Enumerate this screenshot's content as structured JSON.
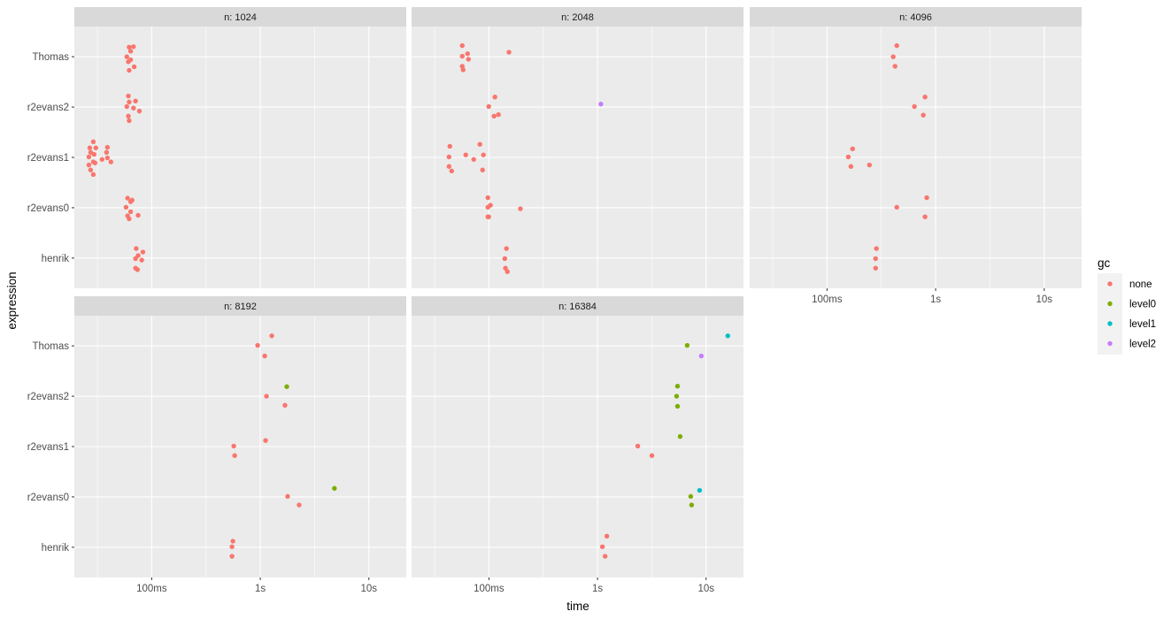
{
  "chart_data": {
    "type": "scatter",
    "subtype": "faceted jitter plot",
    "xlabel": "time",
    "ylabel": "expression",
    "x_scale": "log10",
    "x_unit": "ms",
    "xlim_ms": [
      19.4,
      22100
    ],
    "x_ticks": [
      {
        "value_ms": 100,
        "label": "100ms"
      },
      {
        "value_ms": 1000,
        "label": "1s"
      },
      {
        "value_ms": 10000,
        "label": "10s"
      }
    ],
    "categories": [
      "henrik",
      "r2evans0",
      "r2evans1",
      "r2evans2",
      "Thomas"
    ],
    "grid": true,
    "legend": {
      "title": "gc",
      "placement": "right",
      "items": [
        {
          "key": "none",
          "label": "none",
          "color": "#F8766D"
        },
        {
          "key": "level0",
          "label": "level0",
          "color": "#7CAE00"
        },
        {
          "key": "level1",
          "label": "level1",
          "color": "#00BFC4"
        },
        {
          "key": "level2",
          "label": "level2",
          "color": "#C77CFF"
        }
      ]
    },
    "point_fields": [
      "time_ms",
      "jitter",
      "gc"
    ],
    "facets": [
      {
        "label": "n: 1024",
        "points": {
          "Thomas": [
            [
              62,
              0.19,
              "none"
            ],
            [
              68,
              0.2,
              "none"
            ],
            [
              64,
              0.11,
              "none"
            ],
            [
              59,
              0.0,
              "none"
            ],
            [
              64,
              -0.06,
              "none"
            ],
            [
              61,
              -0.1,
              "none"
            ],
            [
              69,
              -0.2,
              "none"
            ],
            [
              62,
              -0.27,
              "none"
            ]
          ],
          "r2evans2": [
            [
              61,
              0.22,
              "none"
            ],
            [
              62,
              0.1,
              "none"
            ],
            [
              71,
              0.12,
              "none"
            ],
            [
              59,
              0.01,
              "none"
            ],
            [
              68,
              -0.02,
              "none"
            ],
            [
              77,
              -0.08,
              "none"
            ],
            [
              61,
              -0.18,
              "none"
            ],
            [
              62,
              -0.27,
              "none"
            ]
          ],
          "r2evans1": [
            [
              29,
              0.31,
              "none"
            ],
            [
              26.9,
              0.19,
              "none"
            ],
            [
              30.6,
              0.19,
              "none"
            ],
            [
              39.1,
              0.2,
              "none"
            ],
            [
              27.4,
              0.1,
              "none"
            ],
            [
              29.5,
              0.06,
              "none"
            ],
            [
              38.4,
              0.1,
              "none"
            ],
            [
              26.4,
              0.01,
              "none"
            ],
            [
              39.1,
              -0.01,
              "none"
            ],
            [
              34.9,
              -0.04,
              "none"
            ],
            [
              29,
              -0.09,
              "none"
            ],
            [
              30.1,
              -0.11,
              "none"
            ],
            [
              42.1,
              -0.09,
              "none"
            ],
            [
              26.4,
              -0.15,
              "none"
            ],
            [
              27.4,
              -0.25,
              "none"
            ],
            [
              29,
              -0.34,
              "none"
            ]
          ],
          "r2evans0": [
            [
              60,
              0.19,
              "none"
            ],
            [
              66,
              0.15,
              "none"
            ],
            [
              64,
              0.12,
              "none"
            ],
            [
              58,
              0.01,
              "none"
            ],
            [
              64,
              -0.08,
              "none"
            ],
            [
              75,
              -0.15,
              "none"
            ],
            [
              60,
              -0.16,
              "none"
            ],
            [
              62,
              -0.22,
              "none"
            ]
          ],
          "henrik": [
            [
              72,
              0.19,
              "none"
            ],
            [
              83,
              0.12,
              "none"
            ],
            [
              75,
              0.05,
              "none"
            ],
            [
              71,
              -0.01,
              "none"
            ],
            [
              81,
              -0.04,
              "none"
            ],
            [
              71,
              -0.2,
              "none"
            ],
            [
              74,
              -0.23,
              "none"
            ]
          ]
        }
      },
      {
        "label": "n: 2048",
        "points": {
          "Thomas": [
            [
              56.8,
              0.22,
              "none"
            ],
            [
              63.6,
              0.06,
              "none"
            ],
            [
              56.8,
              0.01,
              "none"
            ],
            [
              64.8,
              -0.05,
              "none"
            ],
            [
              56.8,
              -0.19,
              "none"
            ],
            [
              57.9,
              -0.26,
              "none"
            ],
            [
              153,
              0.09,
              "none"
            ]
          ],
          "r2evans2": [
            [
              113.6,
              0.2,
              "none"
            ],
            [
              99.6,
              0.01,
              "none"
            ],
            [
              111.5,
              -0.18,
              "none"
            ],
            [
              122.4,
              -0.15,
              "none"
            ],
            [
              1074,
              0.06,
              "level2"
            ]
          ],
          "r2evans1": [
            [
              43.7,
              0.22,
              "none"
            ],
            [
              42.9,
              0.01,
              "none"
            ],
            [
              45.4,
              -0.27,
              "none"
            ],
            [
              42.9,
              -0.18,
              "none"
            ],
            [
              61.2,
              0.05,
              "none"
            ],
            [
              72.5,
              -0.04,
              "none"
            ],
            [
              82.6,
              0.26,
              "none"
            ],
            [
              89.0,
              0.05,
              "none"
            ],
            [
              87.4,
              -0.25,
              "none"
            ]
          ],
          "r2evans0": [
            [
              97.8,
              0.2,
              "none"
            ],
            [
              103.4,
              0.05,
              "none"
            ],
            [
              97.8,
              0.01,
              "none"
            ],
            [
              195,
              -0.02,
              "none"
            ],
            [
              97.8,
              -0.18,
              "none"
            ],
            [
              99.6,
              -0.18,
              "none"
            ]
          ],
          "henrik": [
            [
              145,
              0.19,
              "none"
            ],
            [
              140,
              -0.01,
              "none"
            ],
            [
              142,
              -0.2,
              "none"
            ],
            [
              148,
              -0.27,
              "none"
            ]
          ]
        }
      },
      {
        "label": "n: 4096",
        "points": {
          "Thomas": [
            [
              439,
              0.22,
              "none"
            ],
            [
              407,
              0.0,
              "none"
            ],
            [
              423,
              -0.19,
              "none"
            ]
          ],
          "r2evans2": [
            [
              799,
              0.2,
              "none"
            ],
            [
              638,
              0.01,
              "none"
            ],
            [
              770,
              -0.16,
              "none"
            ]
          ],
          "r2evans1": [
            [
              172,
              0.17,
              "none"
            ],
            [
              157,
              0.01,
              "none"
            ],
            [
              166,
              -0.18,
              "none"
            ],
            [
              246,
              -0.15,
              "none"
            ]
          ],
          "r2evans0": [
            [
              829,
              0.2,
              "none"
            ],
            [
              439,
              0.01,
              "none"
            ],
            [
              799,
              -0.18,
              "none"
            ]
          ],
          "henrik": [
            [
              285,
              0.19,
              "none"
            ],
            [
              280,
              -0.01,
              "none"
            ],
            [
              280,
              -0.2,
              "none"
            ]
          ]
        }
      },
      {
        "label": "n: 8192",
        "points": {
          "Thomas": [
            [
              1276,
              0.2,
              "none"
            ],
            [
              946,
              0.01,
              "none"
            ],
            [
              1099,
              -0.2,
              "none"
            ]
          ],
          "r2evans2": [
            [
              1754,
              0.19,
              "level0"
            ],
            [
              1140,
              0.0,
              "none"
            ],
            [
              1689,
              -0.18,
              "none"
            ]
          ],
          "r2evans1": [
            [
              1119,
              0.12,
              "none"
            ],
            [
              570,
              0.01,
              "none"
            ],
            [
              581,
              -0.18,
              "none"
            ]
          ],
          "r2evans0": [
            [
              4818,
              0.17,
              "level0"
            ],
            [
              1786,
              0.01,
              "none"
            ],
            [
              2279,
              -0.16,
              "none"
            ]
          ],
          "henrik": [
            [
              560,
              0.12,
              "none"
            ],
            [
              549,
              0.01,
              "none"
            ],
            [
              549,
              -0.18,
              "none"
            ]
          ]
        }
      },
      {
        "label": "n: 16384",
        "points": {
          "Thomas": [
            [
              15850,
              0.2,
              "level1"
            ],
            [
              6698,
              0.01,
              "level0"
            ],
            [
              9036,
              -0.2,
              "level2"
            ]
          ],
          "r2evans2": [
            [
              5454,
              0.2,
              "level0"
            ],
            [
              5350,
              0.0,
              "level0"
            ],
            [
              5454,
              -0.2,
              "level0"
            ]
          ],
          "r2evans1": [
            [
              5768,
              0.2,
              "level0"
            ],
            [
              2349,
              0.01,
              "none"
            ],
            [
              3169,
              -0.18,
              "none"
            ]
          ],
          "r2evans0": [
            [
              8710,
              0.13,
              "level1"
            ],
            [
              7220,
              0.01,
              "level0"
            ],
            [
              7355,
              -0.16,
              "level0"
            ]
          ],
          "henrik": [
            [
              1219,
              0.22,
              "none"
            ],
            [
              1110,
              0.01,
              "none"
            ],
            [
              1175,
              -0.18,
              "none"
            ]
          ]
        }
      }
    ]
  }
}
